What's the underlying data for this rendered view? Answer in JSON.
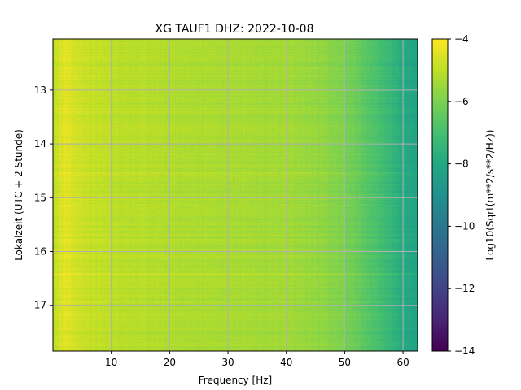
{
  "chart_data": {
    "type": "heatmap",
    "title": "XG TAUF1  DHZ: 2022-10-08",
    "xlabel": "Frequency [Hz]",
    "ylabel": "Lokalzeit (UTC + 2 Stunde)",
    "colorbar_label": "Log10(Sqrt(m**2/s**2/Hz))",
    "colormap": "viridis",
    "xlim": [
      0,
      62.5
    ],
    "ylim": [
      17.85,
      12.05
    ],
    "y_inverted": true,
    "clim": [
      -14,
      -4
    ],
    "grid": true,
    "x_ticks": [
      10,
      20,
      30,
      40,
      50,
      60
    ],
    "x_tick_labels": [
      "10",
      "20",
      "30",
      "40",
      "50",
      "60"
    ],
    "y_ticks": [
      13,
      14,
      15,
      16,
      17
    ],
    "y_tick_labels": [
      "13",
      "14",
      "15",
      "16",
      "17"
    ],
    "colorbar_ticks": [
      -4,
      -6,
      -8,
      -10,
      -12,
      -14
    ],
    "colorbar_tick_labels": [
      "−4",
      "−6",
      "−8",
      "−10",
      "−12",
      "−14"
    ],
    "spectrum_profile": {
      "frequency_hz": [
        0,
        2,
        5,
        10,
        20,
        30,
        40,
        45,
        48,
        50,
        52,
        55,
        58,
        60,
        62.5
      ],
      "log10_amplitude": [
        -5.0,
        -4.4,
        -4.8,
        -5.0,
        -5.2,
        -5.3,
        -5.4,
        -5.6,
        -5.8,
        -6.0,
        -6.3,
        -6.8,
        -7.4,
        -7.9,
        -8.2
      ]
    }
  }
}
